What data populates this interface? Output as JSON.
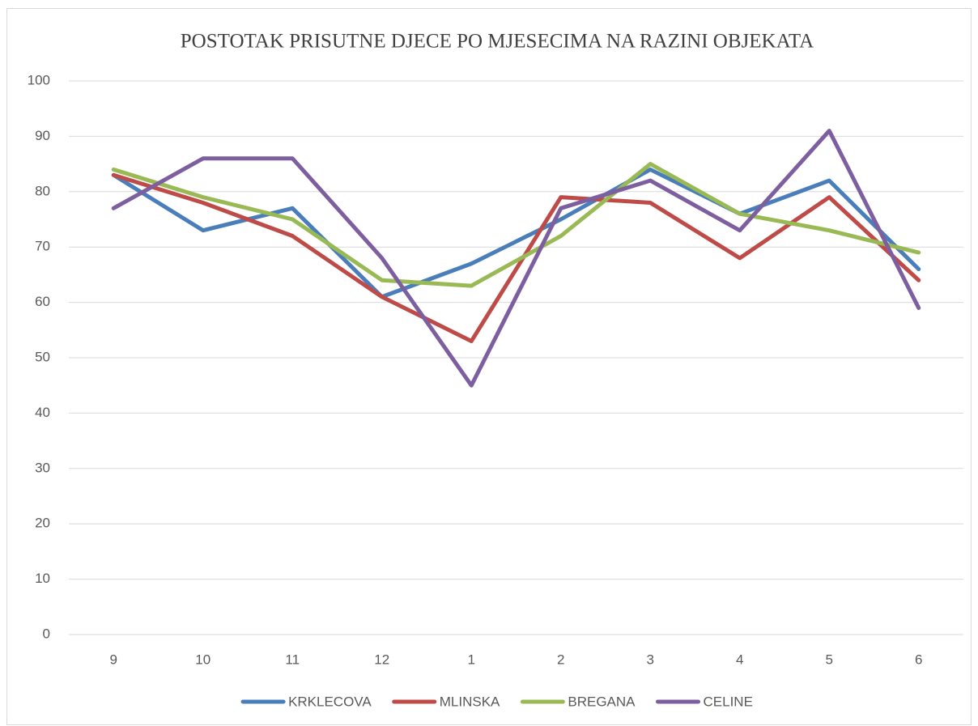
{
  "chart_data": {
    "type": "line",
    "title": "POSTOTAK PRISUTNE DJECE PO MJESECIMA NA RAZINI OBJEKATA",
    "categories": [
      "9",
      "10",
      "11",
      "12",
      "1",
      "2",
      "3",
      "4",
      "5",
      "6"
    ],
    "series": [
      {
        "name": "KRKLECOVA",
        "color": "#4a7ebb",
        "values": [
          83,
          73,
          77,
          61,
          67,
          75,
          84,
          76,
          82,
          66
        ]
      },
      {
        "name": "MLINSKA",
        "color": "#be4b48",
        "values": [
          83,
          78,
          72,
          61,
          53,
          79,
          78,
          68,
          79,
          64
        ]
      },
      {
        "name": "BREGANA",
        "color": "#98b954",
        "values": [
          84,
          79,
          75,
          64,
          63,
          72,
          85,
          76,
          73,
          69
        ]
      },
      {
        "name": "CELINE",
        "color": "#7d5fa0",
        "values": [
          77,
          86,
          86,
          68,
          45,
          77,
          82,
          73,
          91,
          59
        ]
      }
    ],
    "ylim": [
      0,
      100
    ],
    "yticks": [
      0,
      10,
      20,
      30,
      40,
      50,
      60,
      70,
      80,
      90,
      100
    ],
    "grid": true,
    "legend": "bottom"
  }
}
